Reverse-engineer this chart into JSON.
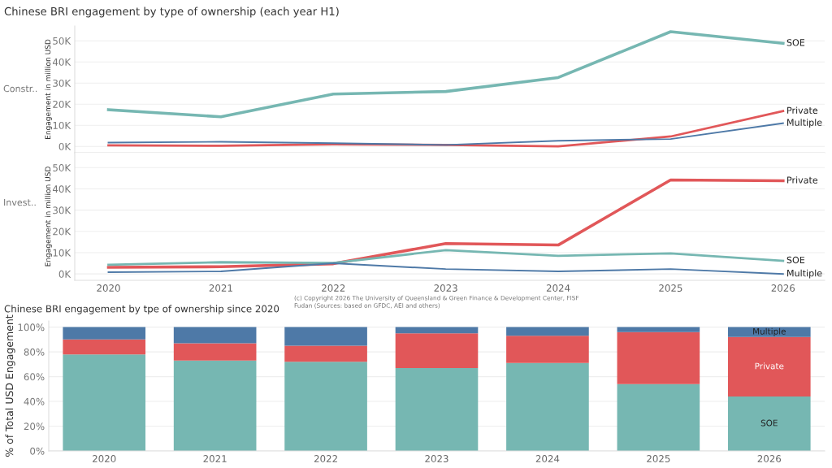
{
  "chart_data": [
    {
      "type": "line",
      "title": "Chinese BRI engagement by type of ownership (each year H1)",
      "ylabel": "Engagement in million USD",
      "annotations": [
        "Constr.."
      ],
      "categories": [
        "2020",
        "2021",
        "2022",
        "2023",
        "2024",
        "2025",
        "2026"
      ],
      "series": [
        {
          "name": "SOE",
          "color": "#76b7b2",
          "values": [
            17400,
            14000,
            24800,
            26000,
            32600,
            54300,
            48800
          ]
        },
        {
          "name": "Private",
          "color": "#e15759",
          "values": [
            500,
            300,
            1000,
            700,
            0,
            4700,
            16700
          ]
        },
        {
          "name": "Multiple",
          "color": "#4e79a7",
          "values": [
            1800,
            2200,
            1500,
            700,
            2700,
            3500,
            11000
          ]
        }
      ],
      "ylim": [
        -3000,
        57000
      ],
      "yticks": [
        {
          "value": 0,
          "label": "0K"
        },
        {
          "value": 10000,
          "label": "10K"
        },
        {
          "value": 20000,
          "label": "20K"
        },
        {
          "value": 30000,
          "label": "30K"
        },
        {
          "value": 40000,
          "label": "40K"
        },
        {
          "value": 50000,
          "label": "50K"
        }
      ],
      "grid": "y",
      "legend": false,
      "tick_labels": "y",
      "marker": "none",
      "line_style": "solid"
    },
    {
      "type": "line",
      "ylabel": "Engagement in million USD",
      "annotations": [
        "Invest.."
      ],
      "categories": [
        "2020",
        "2021",
        "2022",
        "2023",
        "2024",
        "2025",
        "2026"
      ],
      "series": [
        {
          "name": "Private",
          "color": "#e15759",
          "values": [
            3100,
            3400,
            4800,
            14300,
            13600,
            44200,
            43800
          ]
        },
        {
          "name": "SOE",
          "color": "#76b7b2",
          "values": [
            4300,
            5500,
            5200,
            11200,
            8500,
            9700,
            6200
          ]
        },
        {
          "name": "Multiple",
          "color": "#4e79a7",
          "values": [
            800,
            1200,
            5000,
            2300,
            1200,
            2300,
            0
          ]
        }
      ],
      "ylim": [
        -3000,
        57000
      ],
      "yticks": [
        {
          "value": 0,
          "label": "0K"
        },
        {
          "value": 10000,
          "label": "10K"
        },
        {
          "value": 20000,
          "label": "20K"
        },
        {
          "value": 30000,
          "label": "30K"
        },
        {
          "value": 40000,
          "label": "40K"
        },
        {
          "value": 50000,
          "label": "50K"
        }
      ],
      "grid": "y",
      "legend": false,
      "marker": "none",
      "line_style": "solid"
    },
    {
      "type": "bar",
      "stacked": true,
      "title": "Chinese BRI engagement by tpe of ownership since 2020",
      "ylabel": "% of Total USD Engagement",
      "annotations": [
        "(c) Copyright 2026 The University of Queensland & Green Finance & Development Center, FISF\nFudan (Sources: based on GFDC, AEI and others)"
      ],
      "categories": [
        "2020",
        "2021",
        "2022",
        "2023",
        "2024",
        "2025",
        "2026"
      ],
      "series": [
        {
          "name": "SOE",
          "color": "#76b7b2",
          "values": [
            78,
            73,
            72,
            67,
            71,
            54,
            44
          ]
        },
        {
          "name": "Private",
          "color": "#e15759",
          "values": [
            12,
            14,
            13,
            28,
            22,
            42,
            48
          ]
        },
        {
          "name": "Multiple",
          "color": "#4e79a7",
          "values": [
            10,
            13,
            15,
            5,
            7,
            4,
            8
          ]
        }
      ],
      "ylim": [
        0,
        105
      ],
      "yticks": [
        {
          "value": 0,
          "label": "0%"
        },
        {
          "value": 20,
          "label": "20%"
        },
        {
          "value": 40,
          "label": "40%"
        },
        {
          "value": 60,
          "label": "60%"
        },
        {
          "value": 80,
          "label": "80%"
        },
        {
          "value": 100,
          "label": "100%"
        }
      ],
      "grid": "y",
      "legend": false
    }
  ]
}
